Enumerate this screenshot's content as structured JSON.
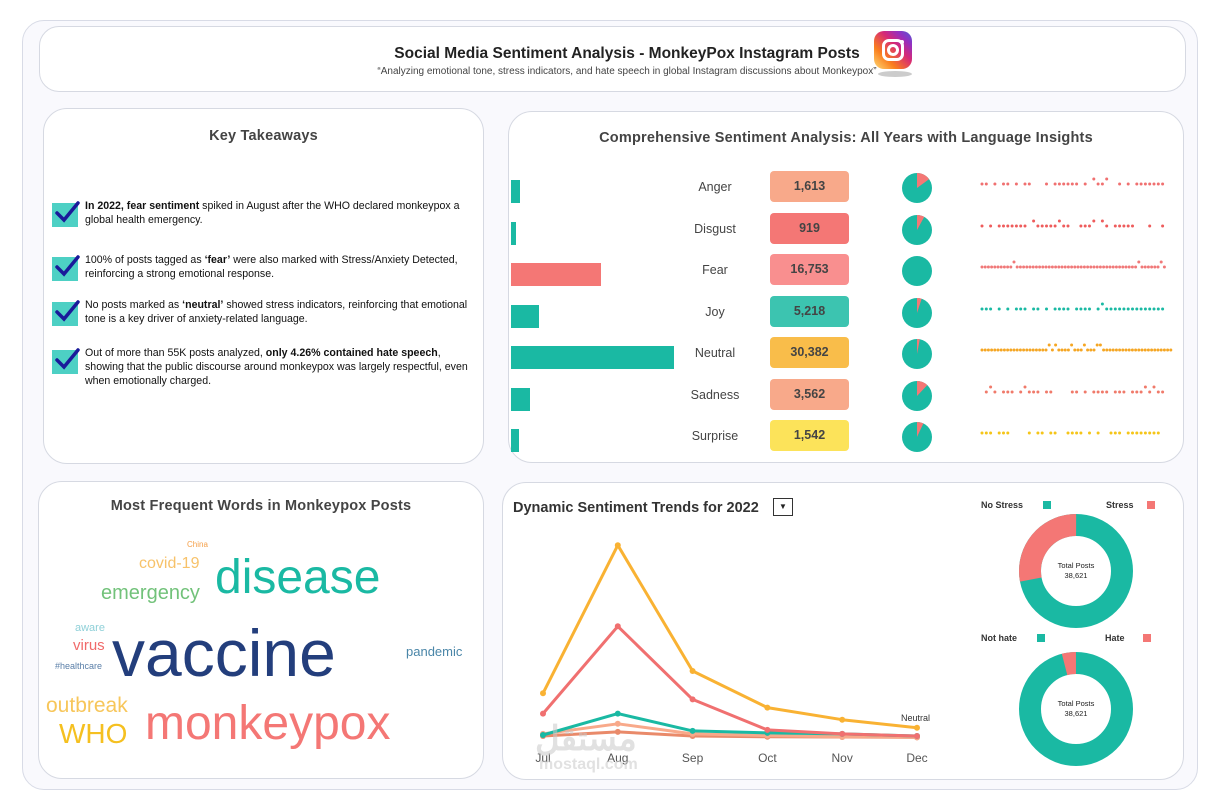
{
  "header": {
    "title": "Social Media Sentiment Analysis - MonkeyPox Instagram Posts",
    "subtitle": "“Analyzing emotional tone, stress indicators, and hate speech in global Instagram discussions about Monkeypox”",
    "logo_icon": "instagram-logo-icon"
  },
  "takeaways": {
    "title": "Key Takeaways",
    "items": [
      {
        "bold": "In 2022, fear sentiment",
        "text": " spiked in August after the WHO declared monkeypox a global health emergency."
      },
      {
        "pre": "100% of posts tagged as ",
        "bold": "‘fear’",
        "text": " were also marked with Stress/Anxiety Detected, reinforcing a strong emotional response."
      },
      {
        "pre": "No posts marked as ",
        "bold": "‘neutral’",
        "text": " showed stress indicators, reinforcing that emotional tone is a key driver of anxiety-related language."
      },
      {
        "pre": "Out of more than 55K posts analyzed, ",
        "bold": "only 4.26% contained hate speech",
        "text": ", showing that the public discourse around monkeypox was largely respectful, even when emotionally charged."
      }
    ]
  },
  "sentiment": {
    "title": "Comprehensive Sentiment Analysis: All Years with Language Insights",
    "rows": [
      {
        "emotion": "Anger",
        "count": "1,613",
        "value": 1613,
        "bar_color": "#1ab9a3",
        "box_color": "#f8a98a",
        "dot_color": "#f07070",
        "pie_share": 0.15
      },
      {
        "emotion": "Disgust",
        "count": "919",
        "value": 919,
        "bar_color": "#1ab9a3",
        "box_color": "#f47775",
        "dot_color": "#ee5c5c",
        "pie_share": 0.08
      },
      {
        "emotion": "Fear",
        "count": "16,753",
        "value": 16753,
        "bar_color": "#f47775",
        "box_color": "#f98f8f",
        "dot_color": "#f07878",
        "pie_share": 0.0
      },
      {
        "emotion": "Joy",
        "count": "5,218",
        "value": 5218,
        "bar_color": "#1ab9a3",
        "box_color": "#3cc4b0",
        "dot_color": "#1ab9a3",
        "pie_share": 0.05
      },
      {
        "emotion": "Neutral",
        "count": "30,382",
        "value": 30382,
        "bar_color": "#1ab9a3",
        "box_color": "#f9bd4a",
        "dot_color": "#f5a623",
        "pie_share": 0.03
      },
      {
        "emotion": "Sadness",
        "count": "3,562",
        "value": 3562,
        "bar_color": "#1ab9a3",
        "box_color": "#f8a98a",
        "dot_color": "#f07a6a",
        "pie_share": 0.12
      },
      {
        "emotion": "Surprise",
        "count": "1,542",
        "value": 1542,
        "bar_color": "#1ab9a3",
        "box_color": "#fce35a",
        "dot_color": "#f5c518",
        "pie_share": 0.07
      }
    ]
  },
  "words": {
    "title": "Most Frequent Words in Monkeypox Posts",
    "items": [
      {
        "text": "China",
        "color": "#f5a04a"
      },
      {
        "text": "covid-19",
        "color": "#f7c26a"
      },
      {
        "text": "disease",
        "color": "#1ab9a3"
      },
      {
        "text": "emergency",
        "color": "#72c27a"
      },
      {
        "text": "aware",
        "color": "#8fd0d8"
      },
      {
        "text": "virus",
        "color": "#f06a6a"
      },
      {
        "text": "#healthcare",
        "color": "#5a7fa8"
      },
      {
        "text": "vaccine",
        "color": "#233e7c"
      },
      {
        "text": "pandemic",
        "color": "#4a86a8"
      },
      {
        "text": "outbreak",
        "color": "#f7c65a"
      },
      {
        "text": "WHO",
        "color": "#f5c020"
      },
      {
        "text": "monkeypox",
        "color": "#f47775"
      }
    ]
  },
  "trends": {
    "title": "Dynamic Sentiment Trends for 2022",
    "dropdown_icon": "dropdown-arrow-icon",
    "series_label": "Neutral",
    "stress": {
      "legend_a": "No Stress",
      "legend_b": "Stress",
      "color_a": "#1ab9a3",
      "color_b": "#f47775",
      "center_label": "Total Posts",
      "center_value": "38,621",
      "share_b": 0.28
    },
    "hate": {
      "legend_a": "Not hate",
      "legend_b": "Hate",
      "color_a": "#1ab9a3",
      "color_b": "#f47775",
      "center_label": "Total Posts",
      "center_value": "38,621",
      "share_b": 0.04
    }
  },
  "chart_data": {
    "type": "line",
    "x": [
      "Jul",
      "Aug",
      "Sep",
      "Oct",
      "Nov",
      "Dec"
    ],
    "ylim": [
      0,
      10000
    ],
    "series": [
      {
        "name": "Neutral",
        "color": "#f9b233",
        "values": [
          2200,
          9500,
          3300,
          1500,
          900,
          500
        ]
      },
      {
        "color": "#f07070",
        "values": [
          1200,
          5500,
          1900,
          400,
          200,
          100
        ]
      },
      {
        "color": "#1ab9a3",
        "values": [
          150,
          1200,
          350,
          250,
          200,
          100
        ]
      },
      {
        "color": "#f8a98a",
        "values": [
          200,
          700,
          200,
          120,
          60,
          40
        ]
      },
      {
        "color": "#e98a6a",
        "values": [
          100,
          300,
          100,
          60,
          50,
          30
        ]
      }
    ]
  },
  "watermark": {
    "text_ar": "مستقل",
    "text_en": "mostaql.com"
  }
}
